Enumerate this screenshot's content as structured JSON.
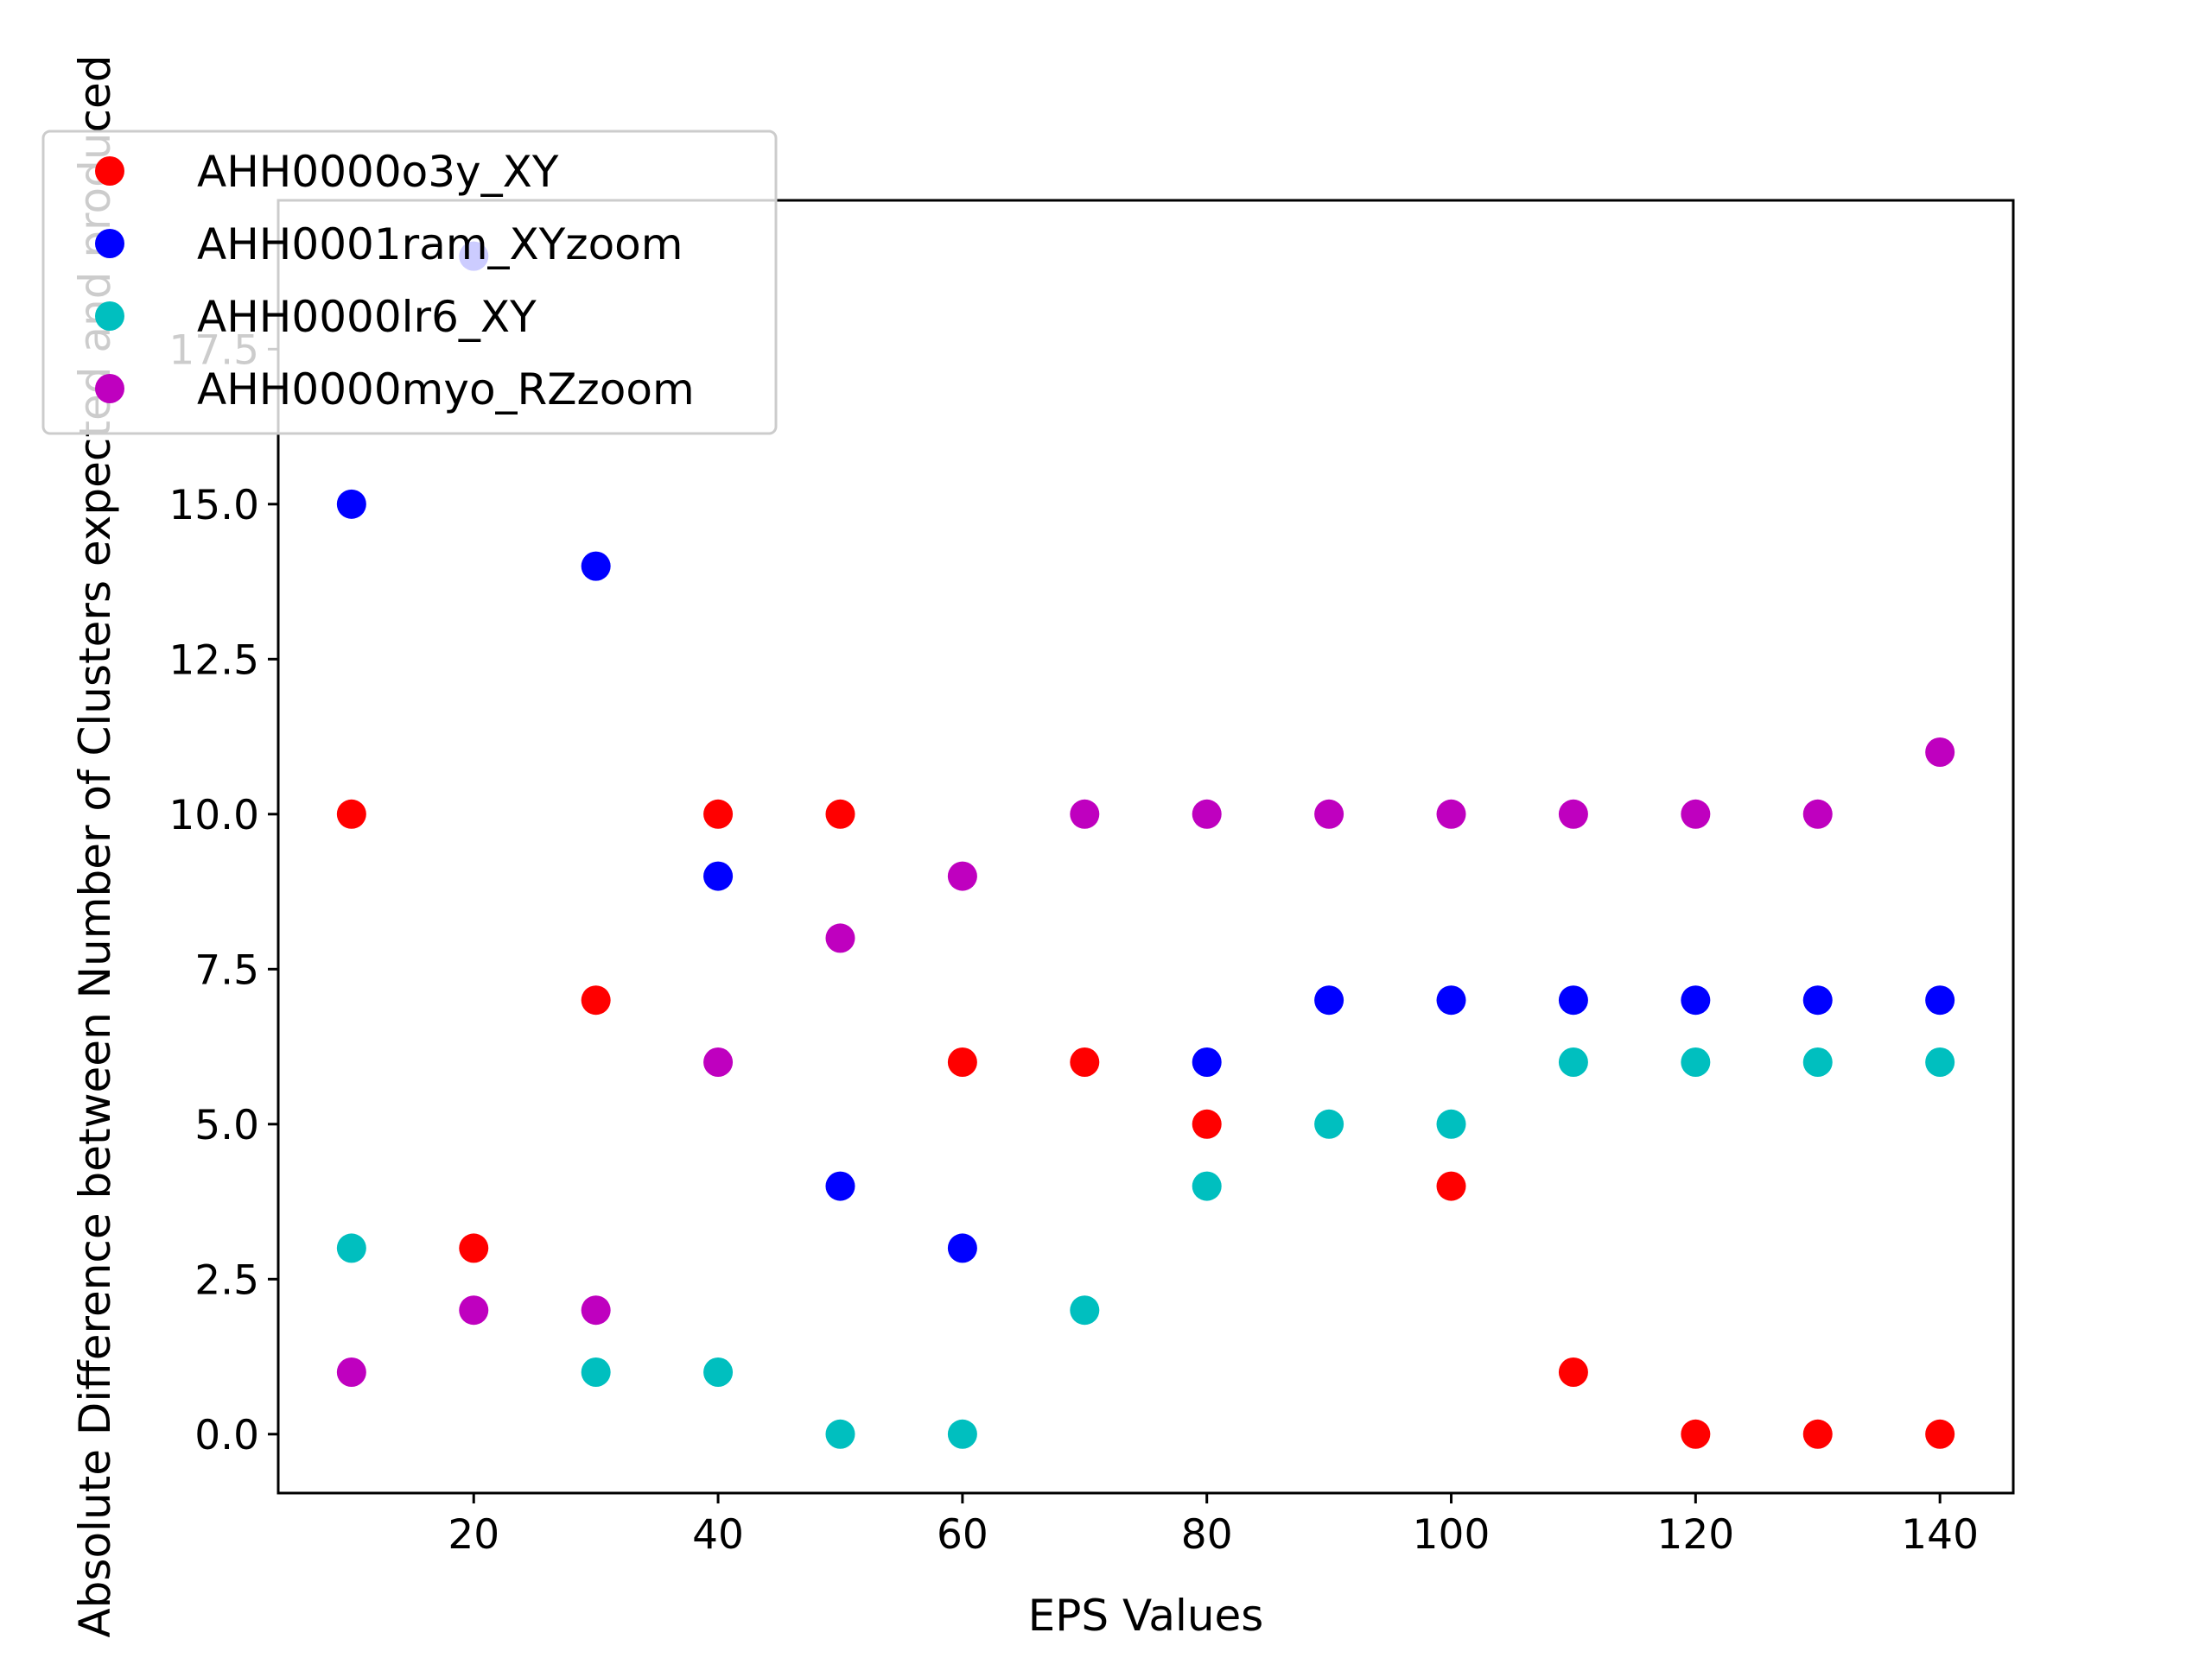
{
  "chart_data": {
    "type": "scatter",
    "title": "",
    "xlabel": "EPS Values",
    "ylabel": "Absolute Difference between Number of Clusters expected and produced",
    "xlim": [
      4,
      146
    ],
    "ylim": [
      -0.95,
      19.9
    ],
    "xticks": [
      20,
      40,
      60,
      80,
      100,
      120,
      140
    ],
    "yticks": [
      0.0,
      2.5,
      5.0,
      7.5,
      10.0,
      12.5,
      15.0,
      17.5
    ],
    "ytick_labels": [
      "0.0",
      "2.5",
      "5.0",
      "7.5",
      "10.0",
      "12.5",
      "15.0",
      "17.5"
    ],
    "grid": false,
    "legend_position": "top-left",
    "x": [
      10,
      20,
      30,
      40,
      50,
      60,
      70,
      80,
      90,
      100,
      110,
      120,
      130,
      140
    ],
    "series": [
      {
        "name": "AHH0000o3y_XY",
        "color": "#ff0000",
        "points": [
          [
            10,
            10
          ],
          [
            20,
            3
          ],
          [
            30,
            7
          ],
          [
            40,
            10
          ],
          [
            50,
            10
          ],
          [
            60,
            6
          ],
          [
            70,
            6
          ],
          [
            80,
            5
          ],
          [
            100,
            4
          ],
          [
            110,
            1
          ],
          [
            120,
            0
          ],
          [
            130,
            0
          ],
          [
            140,
            0
          ]
        ]
      },
      {
        "name": "AHH0001ram_XYzoom",
        "color": "#0000ff",
        "points": [
          [
            10,
            15
          ],
          [
            20,
            19
          ],
          [
            30,
            14
          ],
          [
            40,
            9
          ],
          [
            50,
            4
          ],
          [
            60,
            3
          ],
          [
            80,
            6
          ],
          [
            90,
            7
          ],
          [
            100,
            7
          ],
          [
            110,
            7
          ],
          [
            120,
            7
          ],
          [
            130,
            7
          ],
          [
            140,
            7
          ]
        ]
      },
      {
        "name": "AHH0000lr6_XY",
        "color": "#00bfbf",
        "points": [
          [
            10,
            3
          ],
          [
            30,
            1
          ],
          [
            40,
            1
          ],
          [
            50,
            0
          ],
          [
            60,
            0
          ],
          [
            70,
            2
          ],
          [
            80,
            4
          ],
          [
            90,
            5
          ],
          [
            100,
            5
          ],
          [
            110,
            6
          ],
          [
            120,
            6
          ],
          [
            130,
            6
          ],
          [
            140,
            6
          ]
        ]
      },
      {
        "name": "AHH0000myo_RZzoom",
        "color": "#bf00bf",
        "points": [
          [
            10,
            1
          ],
          [
            20,
            2
          ],
          [
            30,
            2
          ],
          [
            40,
            6
          ],
          [
            50,
            8
          ],
          [
            60,
            9
          ],
          [
            70,
            10
          ],
          [
            80,
            10
          ],
          [
            90,
            10
          ],
          [
            100,
            10
          ],
          [
            110,
            10
          ],
          [
            120,
            10
          ],
          [
            130,
            10
          ],
          [
            140,
            11
          ]
        ]
      }
    ]
  }
}
